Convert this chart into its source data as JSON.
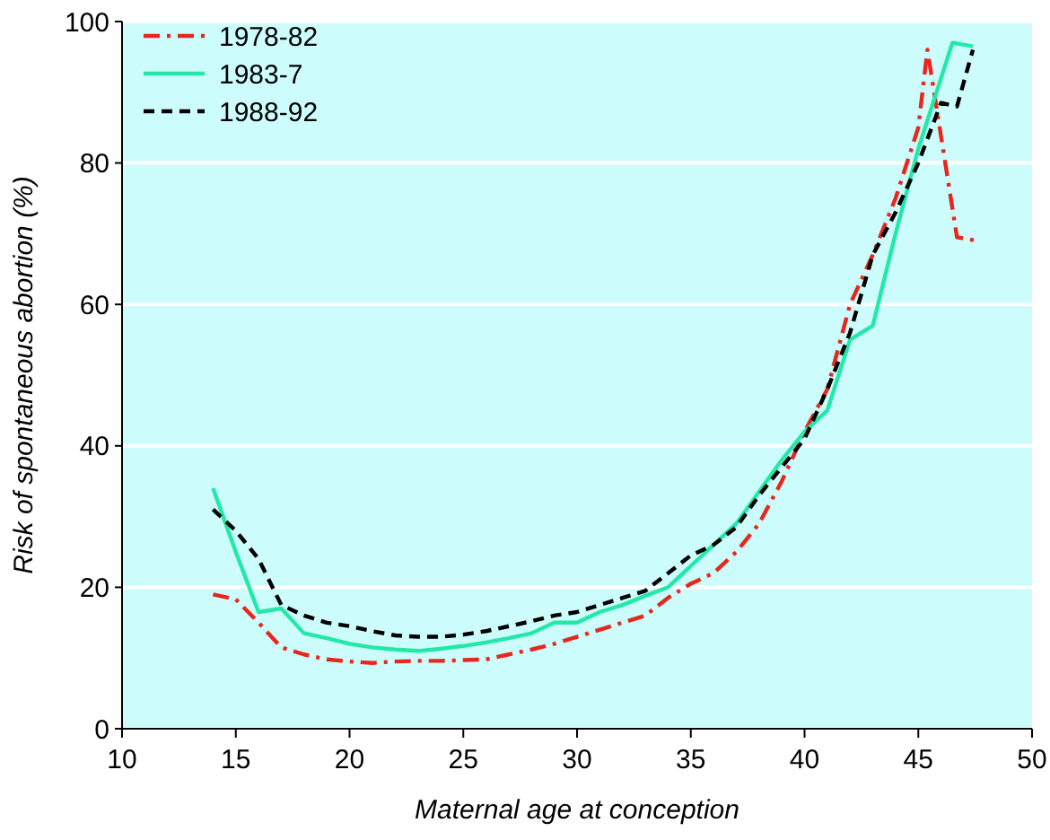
{
  "chart_data": {
    "type": "line",
    "xlabel": "Maternal age at conception",
    "ylabel": "Risk of spontaneous abortion (%)",
    "xlim": [
      10,
      50
    ],
    "xticks": [
      10,
      15,
      20,
      25,
      30,
      35,
      40,
      45,
      50
    ],
    "ylim": [
      0,
      100
    ],
    "yticks": [
      0,
      20,
      40,
      60,
      80,
      100
    ],
    "grid": "y",
    "legend": "top left",
    "series": [
      {
        "name": "1978-82",
        "color": "#e8261c",
        "line_style": "dashdot",
        "x": [
          14,
          15,
          16,
          17,
          18,
          19,
          20,
          21,
          22,
          23,
          24,
          25,
          26,
          27,
          28,
          29,
          30,
          31,
          32,
          33,
          34,
          35,
          36,
          37,
          38,
          39,
          40,
          41,
          42,
          43,
          44,
          45,
          45.4,
          46.7,
          47.6
        ],
        "values": [
          19,
          18.3,
          15,
          11.5,
          10.5,
          9.8,
          9.5,
          9.3,
          9.5,
          9.6,
          9.6,
          9.7,
          9.8,
          10.5,
          11.2,
          12,
          13,
          14,
          15,
          16,
          18.5,
          20.5,
          22,
          25,
          29,
          35,
          42,
          48,
          60,
          67,
          75,
          85,
          96,
          69.5,
          69
        ]
      },
      {
        "name": "1983-7",
        "color": "#22e8a8",
        "line_style": "solid",
        "x": [
          14,
          15,
          16,
          17,
          18,
          19,
          20,
          21,
          22,
          23,
          24,
          25,
          26,
          27,
          28,
          29,
          30,
          31,
          32,
          33,
          34,
          35,
          36,
          37,
          38,
          39,
          40,
          41,
          42,
          43,
          44,
          45,
          46.5,
          47.4
        ],
        "values": [
          34,
          25,
          16.5,
          17,
          13.5,
          12.8,
          12,
          11.5,
          11.2,
          11,
          11.3,
          11.7,
          12.2,
          12.8,
          13.5,
          15,
          15,
          16.5,
          17.5,
          18.8,
          20,
          23,
          26,
          29,
          33.5,
          38,
          42,
          45,
          55,
          57,
          70,
          82,
          97,
          96.5
        ]
      },
      {
        "name": "1988-92",
        "color": "#000000",
        "line_style": "dashed",
        "x": [
          14,
          15,
          16,
          17,
          18,
          19,
          20,
          21,
          22,
          23,
          24,
          25,
          26,
          27,
          28,
          29,
          30,
          31,
          32,
          33,
          34,
          35,
          36,
          37,
          38,
          39,
          40,
          41,
          42,
          43,
          44,
          45,
          46,
          46.7,
          47.4
        ],
        "values": [
          31,
          28,
          24,
          17.5,
          16,
          15,
          14.5,
          13.8,
          13.2,
          13,
          13,
          13.3,
          13.8,
          14.5,
          15.2,
          16,
          16.5,
          17.5,
          18.5,
          19.5,
          22,
          24.5,
          26,
          28.5,
          33,
          37,
          41,
          48,
          56,
          67,
          73,
          80,
          88.5,
          88,
          96
        ]
      }
    ]
  }
}
